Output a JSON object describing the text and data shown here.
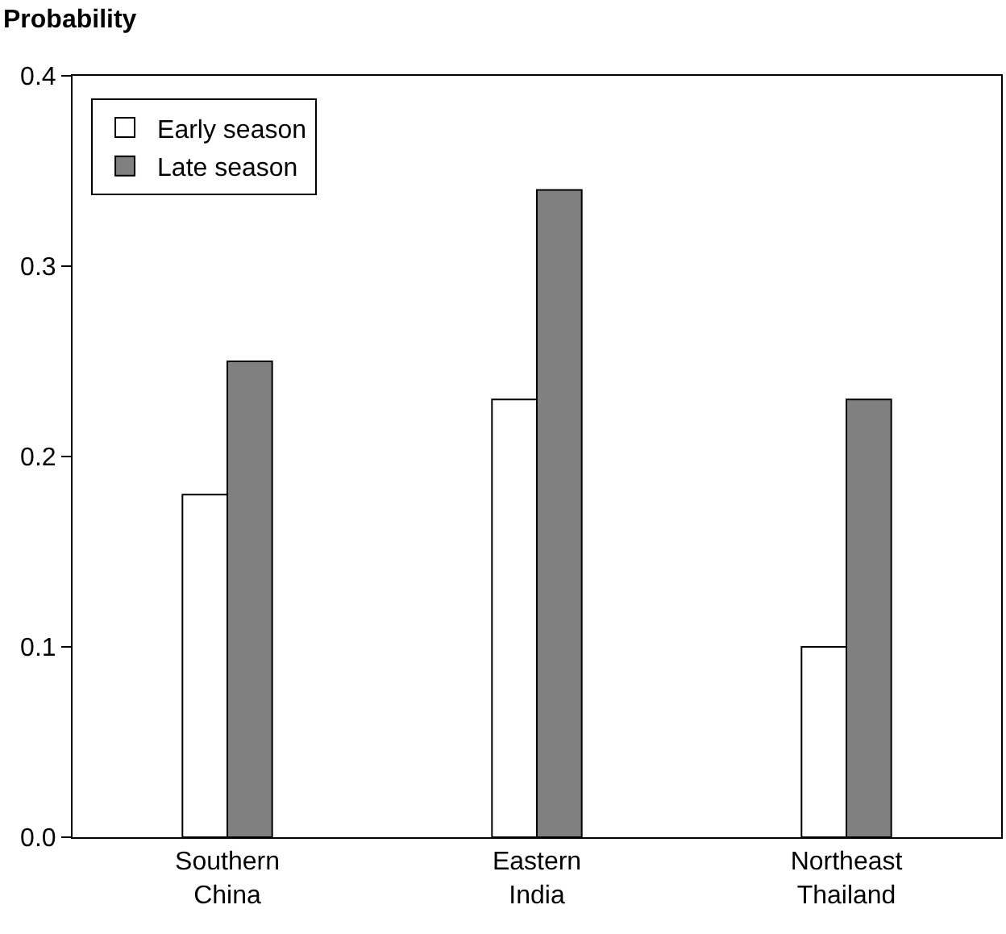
{
  "chart_data": {
    "type": "bar",
    "ylabel": "Probability",
    "categories": [
      "Southern\nChina",
      "Eastern\nIndia",
      "Northeast\nThailand"
    ],
    "series": [
      {
        "name": "Early season",
        "color": "#ffffff",
        "values": [
          0.18,
          0.23,
          0.1
        ]
      },
      {
        "name": "Late season",
        "color": "#808080",
        "values": [
          0.25,
          0.34,
          0.23
        ]
      }
    ],
    "ylim": [
      0,
      0.4
    ],
    "yticks": [
      {
        "value": 0,
        "label": "0.0"
      },
      0.1,
      0.2,
      0.3,
      0.4
    ],
    "legend": "top left"
  }
}
